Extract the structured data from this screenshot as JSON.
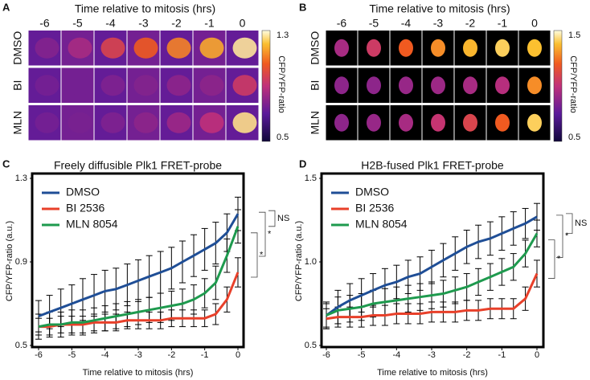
{
  "montages": [
    {
      "letter": "A",
      "title": "Time relative to mitosis (hrs)",
      "columns": [
        -6,
        -5,
        -4,
        -3,
        -2,
        -1,
        0
      ],
      "rows": [
        "DMSO",
        "BI",
        "MLN"
      ],
      "colorbar_label": "CFP/YFP-ratio",
      "colorbar_ticks": [
        1.3,
        0.5
      ]
    },
    {
      "letter": "B",
      "title": "Time relative to mitosis (hrs)",
      "columns": [
        -6,
        -5,
        -4,
        -3,
        -2,
        -1,
        0
      ],
      "rows": [
        "DMSO",
        "BI",
        "MLN"
      ],
      "colorbar_label": "CFP/YFP-ratio",
      "colorbar_ticks": [
        1.5,
        0.5
      ]
    }
  ],
  "chart_data": [
    {
      "type": "line",
      "letter": "C",
      "title": "Freely diffusible Plk1 FRET-probe",
      "x_label": "Time relative to mitosis (hrs)",
      "y_label": "CFP/YFP-ratio (a.u.)",
      "x": [
        -6,
        -5.67,
        -5.33,
        -5,
        -4.67,
        -4.33,
        -4,
        -3.67,
        -3.33,
        -3,
        -2.67,
        -2.33,
        -2,
        -1.67,
        -1.33,
        -1,
        -0.67,
        -0.33,
        0
      ],
      "xlim": [
        -6,
        0
      ],
      "xticks": [
        -6,
        -5,
        -4,
        -3,
        -2,
        -1,
        0
      ],
      "ylim": [
        0.5,
        1.3
      ],
      "yticks": [
        0.5,
        0.9,
        1.3
      ],
      "legend": "upper left",
      "significance": [
        "NS",
        "*",
        "*"
      ],
      "series": [
        {
          "name": "DMSO",
          "color": "#1f4e96",
          "values": [
            0.64,
            0.66,
            0.68,
            0.7,
            0.72,
            0.74,
            0.76,
            0.77,
            0.79,
            0.81,
            0.83,
            0.85,
            0.87,
            0.9,
            0.93,
            0.96,
            0.99,
            1.04,
            1.13
          ],
          "errors": [
            0.075,
            0.08,
            0.09,
            0.09,
            0.1,
            0.1,
            0.1,
            0.1,
            0.1,
            0.1,
            0.1,
            0.1,
            0.1,
            0.1,
            0.1,
            0.1,
            0.1,
            0.09,
            0.08
          ]
        },
        {
          "name": "BI 2536",
          "color": "#e8402a",
          "values": [
            0.59,
            0.59,
            0.6,
            0.6,
            0.6,
            0.61,
            0.61,
            0.61,
            0.62,
            0.62,
            0.62,
            0.62,
            0.63,
            0.63,
            0.63,
            0.63,
            0.65,
            0.72,
            0.85
          ],
          "errors": [
            0.04,
            0.04,
            0.04,
            0.04,
            0.04,
            0.04,
            0.04,
            0.04,
            0.04,
            0.04,
            0.04,
            0.04,
            0.04,
            0.04,
            0.04,
            0.04,
            0.05,
            0.06,
            0.07
          ]
        },
        {
          "name": "MLN 8054",
          "color": "#1e9a4e",
          "values": [
            0.59,
            0.6,
            0.6,
            0.61,
            0.61,
            0.62,
            0.63,
            0.64,
            0.65,
            0.66,
            0.67,
            0.68,
            0.69,
            0.7,
            0.72,
            0.75,
            0.8,
            0.93,
            1.07
          ],
          "errors": [
            0.06,
            0.06,
            0.06,
            0.06,
            0.06,
            0.06,
            0.06,
            0.06,
            0.06,
            0.06,
            0.06,
            0.07,
            0.07,
            0.07,
            0.07,
            0.07,
            0.08,
            0.08,
            0.08
          ]
        }
      ]
    },
    {
      "type": "line",
      "letter": "D",
      "title": "H2B-fused Plk1 FRET-probe",
      "x_label": "Time relative to mitosis (hrs)",
      "y_label": "CFP/YFP-ratio (a.u.)",
      "x": [
        -6,
        -5.67,
        -5.33,
        -5,
        -4.67,
        -4.33,
        -4,
        -3.67,
        -3.33,
        -3,
        -2.67,
        -2.33,
        -2,
        -1.67,
        -1.33,
        -1,
        -0.67,
        -0.33,
        0
      ],
      "xlim": [
        -6,
        0
      ],
      "xticks": [
        -6,
        -5,
        -4,
        -3,
        -2,
        -1,
        0
      ],
      "ylim": [
        0.5,
        1.5
      ],
      "yticks": [
        0.5,
        {
          "value": 1,
          "label": "1.0"
        },
        1.5
      ],
      "legend": "upper left",
      "significance": [
        "NS",
        "*",
        "*"
      ],
      "series": [
        {
          "name": "DMSO",
          "color": "#1f4e96",
          "values": [
            0.68,
            0.73,
            0.77,
            0.8,
            0.83,
            0.86,
            0.88,
            0.91,
            0.93,
            0.97,
            1.01,
            1.05,
            1.09,
            1.12,
            1.14,
            1.17,
            1.2,
            1.23,
            1.27
          ],
          "errors": [
            0.08,
            0.1,
            0.1,
            0.1,
            0.1,
            0.1,
            0.1,
            0.1,
            0.1,
            0.1,
            0.1,
            0.1,
            0.1,
            0.1,
            0.1,
            0.1,
            0.1,
            0.09,
            0.08
          ]
        },
        {
          "name": "BI 2536",
          "color": "#e8402a",
          "values": [
            0.66,
            0.67,
            0.67,
            0.67,
            0.68,
            0.68,
            0.69,
            0.69,
            0.69,
            0.7,
            0.7,
            0.7,
            0.71,
            0.71,
            0.72,
            0.72,
            0.72,
            0.78,
            0.93
          ],
          "errors": [
            0.06,
            0.06,
            0.06,
            0.06,
            0.06,
            0.06,
            0.06,
            0.06,
            0.06,
            0.06,
            0.06,
            0.06,
            0.06,
            0.06,
            0.06,
            0.06,
            0.06,
            0.07,
            0.08
          ]
        },
        {
          "name": "MLN 8054",
          "color": "#1e9a4e",
          "values": [
            0.68,
            0.71,
            0.72,
            0.73,
            0.75,
            0.76,
            0.77,
            0.78,
            0.79,
            0.8,
            0.81,
            0.83,
            0.85,
            0.88,
            0.91,
            0.94,
            0.97,
            1.05,
            1.17
          ],
          "errors": [
            0.07,
            0.08,
            0.08,
            0.08,
            0.08,
            0.08,
            0.08,
            0.08,
            0.08,
            0.08,
            0.08,
            0.08,
            0.08,
            0.08,
            0.08,
            0.08,
            0.08,
            0.08,
            0.08
          ]
        }
      ]
    }
  ]
}
